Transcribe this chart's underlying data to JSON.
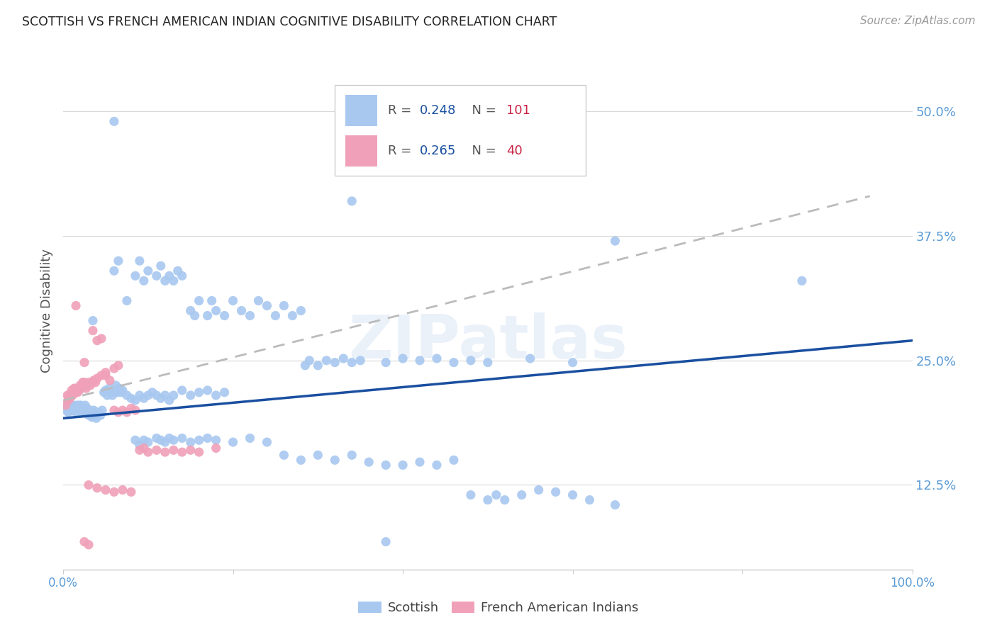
{
  "title": "SCOTTISH VS FRENCH AMERICAN INDIAN COGNITIVE DISABILITY CORRELATION CHART",
  "source": "Source: ZipAtlas.com",
  "ylabel": "Cognitive Disability",
  "right_yticks": [
    "50.0%",
    "37.5%",
    "25.0%",
    "12.5%"
  ],
  "right_ytick_vals": [
    0.5,
    0.375,
    0.25,
    0.125
  ],
  "background_color": "#ffffff",
  "grid_color": "#d8d8d8",
  "watermark": "ZIPatlas",
  "scottish_color": "#a8c8f0",
  "french_color": "#f0a0b8",
  "scottish_line_color": "#1a4fa0",
  "french_line_color": "#c0c0c0",
  "legend_scottish_R": "0.248",
  "legend_scottish_N": "101",
  "legend_french_R": "0.265",
  "legend_french_N": "40",
  "scottish_points": [
    [
      0.003,
      0.2
    ],
    [
      0.005,
      0.205
    ],
    [
      0.006,
      0.198
    ],
    [
      0.007,
      0.203
    ],
    [
      0.008,
      0.2
    ],
    [
      0.009,
      0.205
    ],
    [
      0.01,
      0.202
    ],
    [
      0.011,
      0.2
    ],
    [
      0.012,
      0.205
    ],
    [
      0.013,
      0.2
    ],
    [
      0.014,
      0.203
    ],
    [
      0.015,
      0.198
    ],
    [
      0.016,
      0.205
    ],
    [
      0.017,
      0.202
    ],
    [
      0.018,
      0.2
    ],
    [
      0.019,
      0.205
    ],
    [
      0.02,
      0.2
    ],
    [
      0.021,
      0.205
    ],
    [
      0.022,
      0.2
    ],
    [
      0.023,
      0.198
    ],
    [
      0.024,
      0.202
    ],
    [
      0.025,
      0.2
    ],
    [
      0.026,
      0.205
    ],
    [
      0.027,
      0.198
    ],
    [
      0.028,
      0.202
    ],
    [
      0.029,
      0.2
    ],
    [
      0.03,
      0.195
    ],
    [
      0.031,
      0.2
    ],
    [
      0.032,
      0.195
    ],
    [
      0.033,
      0.198
    ],
    [
      0.034,
      0.193
    ],
    [
      0.035,
      0.195
    ],
    [
      0.036,
      0.2
    ],
    [
      0.037,
      0.195
    ],
    [
      0.038,
      0.198
    ],
    [
      0.039,
      0.192
    ],
    [
      0.04,
      0.196
    ],
    [
      0.042,
      0.198
    ],
    [
      0.044,
      0.195
    ],
    [
      0.046,
      0.2
    ],
    [
      0.048,
      0.218
    ],
    [
      0.05,
      0.22
    ],
    [
      0.052,
      0.215
    ],
    [
      0.054,
      0.222
    ],
    [
      0.056,
      0.218
    ],
    [
      0.058,
      0.215
    ],
    [
      0.06,
      0.22
    ],
    [
      0.062,
      0.225
    ],
    [
      0.064,
      0.218
    ],
    [
      0.066,
      0.222
    ],
    [
      0.068,
      0.218
    ],
    [
      0.07,
      0.22
    ],
    [
      0.075,
      0.215
    ],
    [
      0.08,
      0.212
    ],
    [
      0.085,
      0.21
    ],
    [
      0.09,
      0.215
    ],
    [
      0.095,
      0.212
    ],
    [
      0.1,
      0.215
    ],
    [
      0.105,
      0.218
    ],
    [
      0.11,
      0.215
    ],
    [
      0.115,
      0.212
    ],
    [
      0.12,
      0.215
    ],
    [
      0.125,
      0.21
    ],
    [
      0.13,
      0.215
    ],
    [
      0.14,
      0.22
    ],
    [
      0.15,
      0.215
    ],
    [
      0.16,
      0.218
    ],
    [
      0.17,
      0.22
    ],
    [
      0.18,
      0.215
    ],
    [
      0.19,
      0.218
    ],
    [
      0.035,
      0.29
    ],
    [
      0.06,
      0.34
    ],
    [
      0.065,
      0.35
    ],
    [
      0.075,
      0.31
    ],
    [
      0.085,
      0.335
    ],
    [
      0.09,
      0.35
    ],
    [
      0.095,
      0.33
    ],
    [
      0.1,
      0.34
    ],
    [
      0.11,
      0.335
    ],
    [
      0.115,
      0.345
    ],
    [
      0.12,
      0.33
    ],
    [
      0.125,
      0.335
    ],
    [
      0.13,
      0.33
    ],
    [
      0.135,
      0.34
    ],
    [
      0.14,
      0.335
    ],
    [
      0.15,
      0.3
    ],
    [
      0.155,
      0.295
    ],
    [
      0.16,
      0.31
    ],
    [
      0.17,
      0.295
    ],
    [
      0.175,
      0.31
    ],
    [
      0.18,
      0.3
    ],
    [
      0.19,
      0.295
    ],
    [
      0.2,
      0.31
    ],
    [
      0.21,
      0.3
    ],
    [
      0.22,
      0.295
    ],
    [
      0.23,
      0.31
    ],
    [
      0.24,
      0.305
    ],
    [
      0.25,
      0.295
    ],
    [
      0.26,
      0.305
    ],
    [
      0.27,
      0.295
    ],
    [
      0.28,
      0.3
    ],
    [
      0.285,
      0.245
    ],
    [
      0.29,
      0.25
    ],
    [
      0.3,
      0.245
    ],
    [
      0.31,
      0.25
    ],
    [
      0.32,
      0.248
    ],
    [
      0.33,
      0.252
    ],
    [
      0.34,
      0.248
    ],
    [
      0.35,
      0.25
    ],
    [
      0.38,
      0.248
    ],
    [
      0.4,
      0.252
    ],
    [
      0.42,
      0.25
    ],
    [
      0.44,
      0.252
    ],
    [
      0.46,
      0.248
    ],
    [
      0.48,
      0.25
    ],
    [
      0.5,
      0.248
    ],
    [
      0.55,
      0.252
    ],
    [
      0.6,
      0.248
    ],
    [
      0.65,
      0.37
    ],
    [
      0.87,
      0.33
    ],
    [
      0.085,
      0.17
    ],
    [
      0.09,
      0.165
    ],
    [
      0.095,
      0.17
    ],
    [
      0.1,
      0.168
    ],
    [
      0.11,
      0.172
    ],
    [
      0.115,
      0.17
    ],
    [
      0.12,
      0.168
    ],
    [
      0.125,
      0.172
    ],
    [
      0.13,
      0.17
    ],
    [
      0.14,
      0.172
    ],
    [
      0.15,
      0.168
    ],
    [
      0.16,
      0.17
    ],
    [
      0.17,
      0.172
    ],
    [
      0.18,
      0.17
    ],
    [
      0.2,
      0.168
    ],
    [
      0.22,
      0.172
    ],
    [
      0.24,
      0.168
    ],
    [
      0.26,
      0.155
    ],
    [
      0.28,
      0.15
    ],
    [
      0.3,
      0.155
    ],
    [
      0.32,
      0.15
    ],
    [
      0.34,
      0.155
    ],
    [
      0.36,
      0.148
    ],
    [
      0.38,
      0.145
    ],
    [
      0.4,
      0.145
    ],
    [
      0.42,
      0.148
    ],
    [
      0.44,
      0.145
    ],
    [
      0.46,
      0.15
    ],
    [
      0.48,
      0.115
    ],
    [
      0.5,
      0.11
    ],
    [
      0.51,
      0.115
    ],
    [
      0.52,
      0.11
    ],
    [
      0.54,
      0.115
    ],
    [
      0.56,
      0.12
    ],
    [
      0.58,
      0.118
    ],
    [
      0.6,
      0.115
    ],
    [
      0.62,
      0.11
    ],
    [
      0.65,
      0.105
    ],
    [
      0.38,
      0.068
    ],
    [
      0.06,
      0.49
    ],
    [
      0.34,
      0.41
    ]
  ],
  "french_points": [
    [
      0.003,
      0.205
    ],
    [
      0.005,
      0.215
    ],
    [
      0.006,
      0.21
    ],
    [
      0.007,
      0.215
    ],
    [
      0.008,
      0.212
    ],
    [
      0.009,
      0.215
    ],
    [
      0.01,
      0.22
    ],
    [
      0.011,
      0.215
    ],
    [
      0.012,
      0.218
    ],
    [
      0.013,
      0.222
    ],
    [
      0.014,
      0.218
    ],
    [
      0.015,
      0.222
    ],
    [
      0.016,
      0.22
    ],
    [
      0.017,
      0.218
    ],
    [
      0.018,
      0.222
    ],
    [
      0.019,
      0.22
    ],
    [
      0.02,
      0.225
    ],
    [
      0.021,
      0.222
    ],
    [
      0.022,
      0.225
    ],
    [
      0.023,
      0.228
    ],
    [
      0.024,
      0.225
    ],
    [
      0.025,
      0.228
    ],
    [
      0.026,
      0.225
    ],
    [
      0.027,
      0.222
    ],
    [
      0.028,
      0.225
    ],
    [
      0.03,
      0.228
    ],
    [
      0.032,
      0.225
    ],
    [
      0.034,
      0.228
    ],
    [
      0.036,
      0.23
    ],
    [
      0.038,
      0.228
    ],
    [
      0.04,
      0.232
    ],
    [
      0.045,
      0.235
    ],
    [
      0.05,
      0.238
    ],
    [
      0.06,
      0.242
    ],
    [
      0.065,
      0.245
    ],
    [
      0.015,
      0.305
    ],
    [
      0.025,
      0.248
    ],
    [
      0.035,
      0.28
    ],
    [
      0.04,
      0.27
    ],
    [
      0.045,
      0.272
    ],
    [
      0.05,
      0.235
    ],
    [
      0.055,
      0.23
    ],
    [
      0.06,
      0.2
    ],
    [
      0.065,
      0.198
    ],
    [
      0.07,
      0.2
    ],
    [
      0.075,
      0.198
    ],
    [
      0.08,
      0.202
    ],
    [
      0.085,
      0.2
    ],
    [
      0.09,
      0.16
    ],
    [
      0.095,
      0.162
    ],
    [
      0.1,
      0.158
    ],
    [
      0.11,
      0.16
    ],
    [
      0.12,
      0.158
    ],
    [
      0.13,
      0.16
    ],
    [
      0.14,
      0.158
    ],
    [
      0.15,
      0.16
    ],
    [
      0.16,
      0.158
    ],
    [
      0.18,
      0.162
    ],
    [
      0.03,
      0.125
    ],
    [
      0.04,
      0.122
    ],
    [
      0.05,
      0.12
    ],
    [
      0.06,
      0.118
    ],
    [
      0.07,
      0.12
    ],
    [
      0.08,
      0.118
    ],
    [
      0.025,
      0.068
    ],
    [
      0.03,
      0.065
    ]
  ],
  "scottish_trend_x": [
    0.0,
    1.0
  ],
  "scottish_trend_y": [
    0.192,
    0.27
  ],
  "french_trend_x": [
    0.0,
    0.95
  ],
  "french_trend_y": [
    0.21,
    0.415
  ],
  "xlim": [
    0.0,
    1.0
  ],
  "ylim": [
    0.04,
    0.56
  ]
}
